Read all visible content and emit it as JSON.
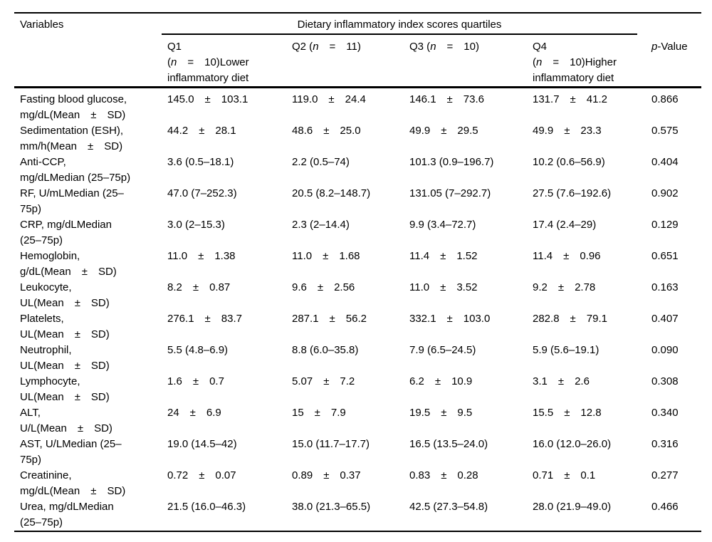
{
  "colors": {
    "text": "#000000",
    "background": "#ffffff",
    "rule": "#000000"
  },
  "table": {
    "header": {
      "variables": "Variables",
      "spanner": "Dietary inflammatory index scores quartiles",
      "q1": "Q1\n(*n* = 10)Lower\ninflammatory diet",
      "q2": "Q2 (*n* = 11)",
      "q3": "Q3 (*n* = 10)",
      "q4": "Q4\n(*n* = 10)Higher\ninflammatory diet",
      "p_value": "*p*-Value"
    },
    "rows": [
      {
        "variable": "Fasting blood glucose,\nmg/dL(Mean ± SD)",
        "q1": "145.0 ± 103.1",
        "q2": "119.0 ± 24.4",
        "q3": "146.1 ± 73.6",
        "q4": "131.7 ± 41.2",
        "p": "0.866"
      },
      {
        "variable": "Sedimentation (ESH),\nmm/h(Mean ± SD)",
        "q1": "44.2 ± 28.1",
        "q2": "48.6 ± 25.0",
        "q3": "49.9 ± 29.5",
        "q4": "49.9 ± 23.3",
        "p": "0.575"
      },
      {
        "variable": "Anti-CCP,\nmg/dLMedian (25–75p)",
        "q1": "3.6 (0.5–18.1)",
        "q2": "2.2 (0.5–74)",
        "q3": "101.3 (0.9–196.7)",
        "q4": "10.2 (0.6–56.9)",
        "p": "0.404"
      },
      {
        "variable": "RF, U/mLMedian (25–\n75p)",
        "q1": "47.0 (7–252.3)",
        "q2": "20.5 (8.2–148.7)",
        "q3": "131.05 (7–292.7)",
        "q4": "27.5 (7.6–192.6)",
        "p": "0.902"
      },
      {
        "variable": "CRP, mg/dLMedian\n(25–75p)",
        "q1": "3.0 (2–15.3)",
        "q2": "2.3 (2–14.4)",
        "q3": "9.9 (3.4–72.7)",
        "q4": "17.4 (2.4–29)",
        "p": "0.129"
      },
      {
        "variable": "Hemoglobin,\ng/dL(Mean ± SD)",
        "q1": "11.0 ± 1.38",
        "q2": "11.0 ± 1.68",
        "q3": "11.4 ± 1.52",
        "q4": "11.4 ± 0.96",
        "p": "0.651"
      },
      {
        "variable": "Leukocyte,\nUL(Mean ± SD)",
        "q1": "8.2 ± 0.87",
        "q2": "9.6 ± 2.56",
        "q3": "11.0 ± 3.52",
        "q4": "9.2 ± 2.78",
        "p": "0.163"
      },
      {
        "variable": "Platelets,\nUL(Mean ± SD)",
        "q1": "276.1 ± 83.7",
        "q2": "287.1 ± 56.2",
        "q3": "332.1 ± 103.0",
        "q4": "282.8 ± 79.1",
        "p": "0.407"
      },
      {
        "variable": "Neutrophil,\nUL(Mean ± SD)",
        "q1": "5.5 (4.8–6.9)",
        "q2": "8.8 (6.0–35.8)",
        "q3": "7.9 (6.5–24.5)",
        "q4": "5.9 (5.6–19.1)",
        "p": "0.090"
      },
      {
        "variable": "Lymphocyte,\nUL(Mean ± SD)",
        "q1": "1.6 ± 0.7",
        "q2": "5.07 ± 7.2",
        "q3": "6.2 ± 10.9",
        "q4": "3.1 ± 2.6",
        "p": "0.308"
      },
      {
        "variable": "ALT,\nU/L(Mean ± SD)",
        "q1": "24 ± 6.9",
        "q2": "15 ± 7.9",
        "q3": "19.5 ± 9.5",
        "q4": "15.5 ± 12.8",
        "p": "0.340"
      },
      {
        "variable": "AST, U/LMedian (25–\n75p)",
        "q1": "19.0 (14.5–42)",
        "q2": "15.0 (11.7–17.7)",
        "q3": "16.5 (13.5–24.0)",
        "q4": "16.0 (12.0–26.0)",
        "p": "0.316"
      },
      {
        "variable": "Creatinine,\nmg/dL(Mean ± SD)",
        "q1": "0.72 ± 0.07",
        "q2": "0.89 ± 0.37",
        "q3": "0.83 ± 0.28",
        "q4": "0.71 ± 0.1",
        "p": "0.277"
      },
      {
        "variable": "Urea, mg/dLMedian\n(25–75p)",
        "q1": "21.5 (16.0–46.3)",
        "q2": "38.0 (21.3–65.5)",
        "q3": "42.5 (27.3–54.8)",
        "q4": "28.0 (21.9–49.0)",
        "p": "0.466"
      }
    ]
  }
}
